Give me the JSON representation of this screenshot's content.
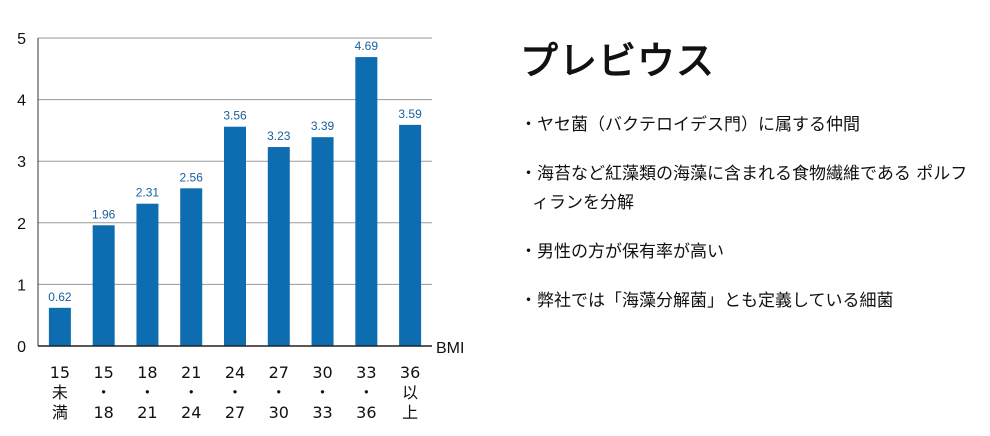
{
  "chart_data": {
    "type": "bar",
    "categories": [
      [
        "15",
        "未",
        "満"
      ],
      [
        "15",
        "・",
        "18"
      ],
      [
        "18",
        "・",
        "21"
      ],
      [
        "21",
        "・",
        "24"
      ],
      [
        "24",
        "・",
        "27"
      ],
      [
        "27",
        "・",
        "30"
      ],
      [
        "30",
        "・",
        "33"
      ],
      [
        "33",
        "・",
        "36"
      ],
      [
        "36",
        "以",
        "上"
      ]
    ],
    "values": [
      0.62,
      1.96,
      2.31,
      2.56,
      3.56,
      3.23,
      3.39,
      4.69,
      3.59
    ],
    "data_labels": [
      "0.62",
      "1.96",
      "2.31",
      "2.56",
      "3.56",
      "3.23",
      "3.39",
      "4.69",
      "3.59"
    ],
    "xlabel": "BMI",
    "ylabel": "",
    "ylim": [
      0,
      5
    ],
    "yticks": [
      "0",
      "1",
      "2",
      "3",
      "4",
      "5"
    ],
    "grid": true,
    "bar_color": "#0e6db0",
    "label_color": "#1a5f9e"
  },
  "panel": {
    "title": "プレビウス",
    "bullets": [
      "ヤセ菌（バクテロイデス門）に属する仲間",
      "海苔など紅藻類の海藻に含まれる食物繊維である ポルフィランを分解",
      "男性の方が保有率が高い",
      "弊社では「海藻分解菌」とも定義している細菌"
    ]
  }
}
